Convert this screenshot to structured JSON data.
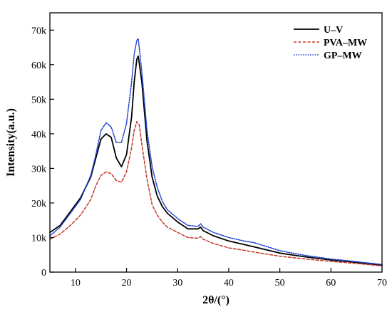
{
  "chart_data": {
    "type": "line",
    "xlabel": "2θ/(°)",
    "ylabel": "Intensity(a.u.)",
    "xlim": [
      5,
      70
    ],
    "ylim": [
      0,
      75000
    ],
    "x_ticks": [
      10,
      20,
      30,
      40,
      50,
      60,
      70
    ],
    "x_tick_labels": [
      "10",
      "20",
      "30",
      "40",
      "50",
      "60",
      "70"
    ],
    "y_ticks": [
      0,
      10000,
      20000,
      30000,
      40000,
      50000,
      60000,
      70000
    ],
    "y_tick_labels": [
      "0",
      "10k",
      "20k",
      "30k",
      "40k",
      "50k",
      "60k",
      "70k"
    ],
    "grid": false,
    "legend_position": "top-right",
    "series": [
      {
        "name": "U–V",
        "color": "#000000",
        "dash": "solid",
        "points": [
          [
            5,
            11500
          ],
          [
            7,
            13500
          ],
          [
            9,
            17500
          ],
          [
            11,
            21500
          ],
          [
            13,
            27500
          ],
          [
            14,
            33000
          ],
          [
            15,
            38500
          ],
          [
            16,
            40000
          ],
          [
            17,
            39000
          ],
          [
            18,
            33000
          ],
          [
            19,
            30500
          ],
          [
            20,
            34000
          ],
          [
            21,
            45000
          ],
          [
            21.5,
            55000
          ],
          [
            22,
            61500
          ],
          [
            22.3,
            62500
          ],
          [
            23,
            55000
          ],
          [
            24,
            38000
          ],
          [
            25,
            27500
          ],
          [
            26,
            22000
          ],
          [
            27,
            19000
          ],
          [
            28,
            17000
          ],
          [
            30,
            14500
          ],
          [
            32,
            12500
          ],
          [
            34,
            12500
          ],
          [
            34.5,
            13000
          ],
          [
            35,
            12000
          ],
          [
            37,
            10500
          ],
          [
            40,
            9000
          ],
          [
            43,
            8000
          ],
          [
            45,
            7300
          ],
          [
            50,
            5500
          ],
          [
            55,
            4400
          ],
          [
            60,
            3500
          ],
          [
            65,
            2800
          ],
          [
            70,
            2000
          ]
        ]
      },
      {
        "name": "PVA–MW",
        "color": "#c0392b",
        "dash": "dashed",
        "points": [
          [
            5,
            9500
          ],
          [
            7,
            11000
          ],
          [
            9,
            13500
          ],
          [
            11,
            16500
          ],
          [
            13,
            21000
          ],
          [
            14,
            25000
          ],
          [
            15,
            28000
          ],
          [
            16,
            29000
          ],
          [
            17,
            28500
          ],
          [
            18,
            26500
          ],
          [
            19,
            26000
          ],
          [
            20,
            29000
          ],
          [
            21,
            36000
          ],
          [
            21.5,
            41000
          ],
          [
            22,
            43500
          ],
          [
            22.5,
            42500
          ],
          [
            23,
            37000
          ],
          [
            24,
            27000
          ],
          [
            25,
            19500
          ],
          [
            26,
            16500
          ],
          [
            27,
            14500
          ],
          [
            28,
            13000
          ],
          [
            30,
            11500
          ],
          [
            32,
            10000
          ],
          [
            34,
            9800
          ],
          [
            34.5,
            10300
          ],
          [
            35,
            9500
          ],
          [
            37,
            8300
          ],
          [
            40,
            7000
          ],
          [
            43,
            6300
          ],
          [
            45,
            5800
          ],
          [
            50,
            4600
          ],
          [
            55,
            3800
          ],
          [
            60,
            3100
          ],
          [
            65,
            2500
          ],
          [
            70,
            1800
          ]
        ]
      },
      {
        "name": "GP–MW",
        "color": "#1f3fd1",
        "dash": "dotted",
        "points": [
          [
            5,
            10500
          ],
          [
            7,
            13000
          ],
          [
            9,
            17000
          ],
          [
            11,
            21000
          ],
          [
            13,
            28000
          ],
          [
            14,
            34000
          ],
          [
            15,
            41000
          ],
          [
            16,
            43200
          ],
          [
            17,
            42000
          ],
          [
            18,
            37500
          ],
          [
            19,
            37500
          ],
          [
            20,
            43000
          ],
          [
            21,
            55000
          ],
          [
            21.5,
            63000
          ],
          [
            22,
            67000
          ],
          [
            22.3,
            67500
          ],
          [
            23,
            58000
          ],
          [
            24,
            41000
          ],
          [
            25,
            30500
          ],
          [
            26,
            24500
          ],
          [
            27,
            20500
          ],
          [
            28,
            18000
          ],
          [
            30,
            15500
          ],
          [
            32,
            13500
          ],
          [
            34,
            13200
          ],
          [
            34.5,
            14000
          ],
          [
            35,
            13000
          ],
          [
            37,
            11500
          ],
          [
            40,
            10000
          ],
          [
            43,
            9000
          ],
          [
            45,
            8500
          ],
          [
            50,
            6200
          ],
          [
            55,
            4800
          ],
          [
            60,
            3800
          ],
          [
            65,
            3000
          ],
          [
            70,
            2200
          ]
        ]
      }
    ]
  }
}
